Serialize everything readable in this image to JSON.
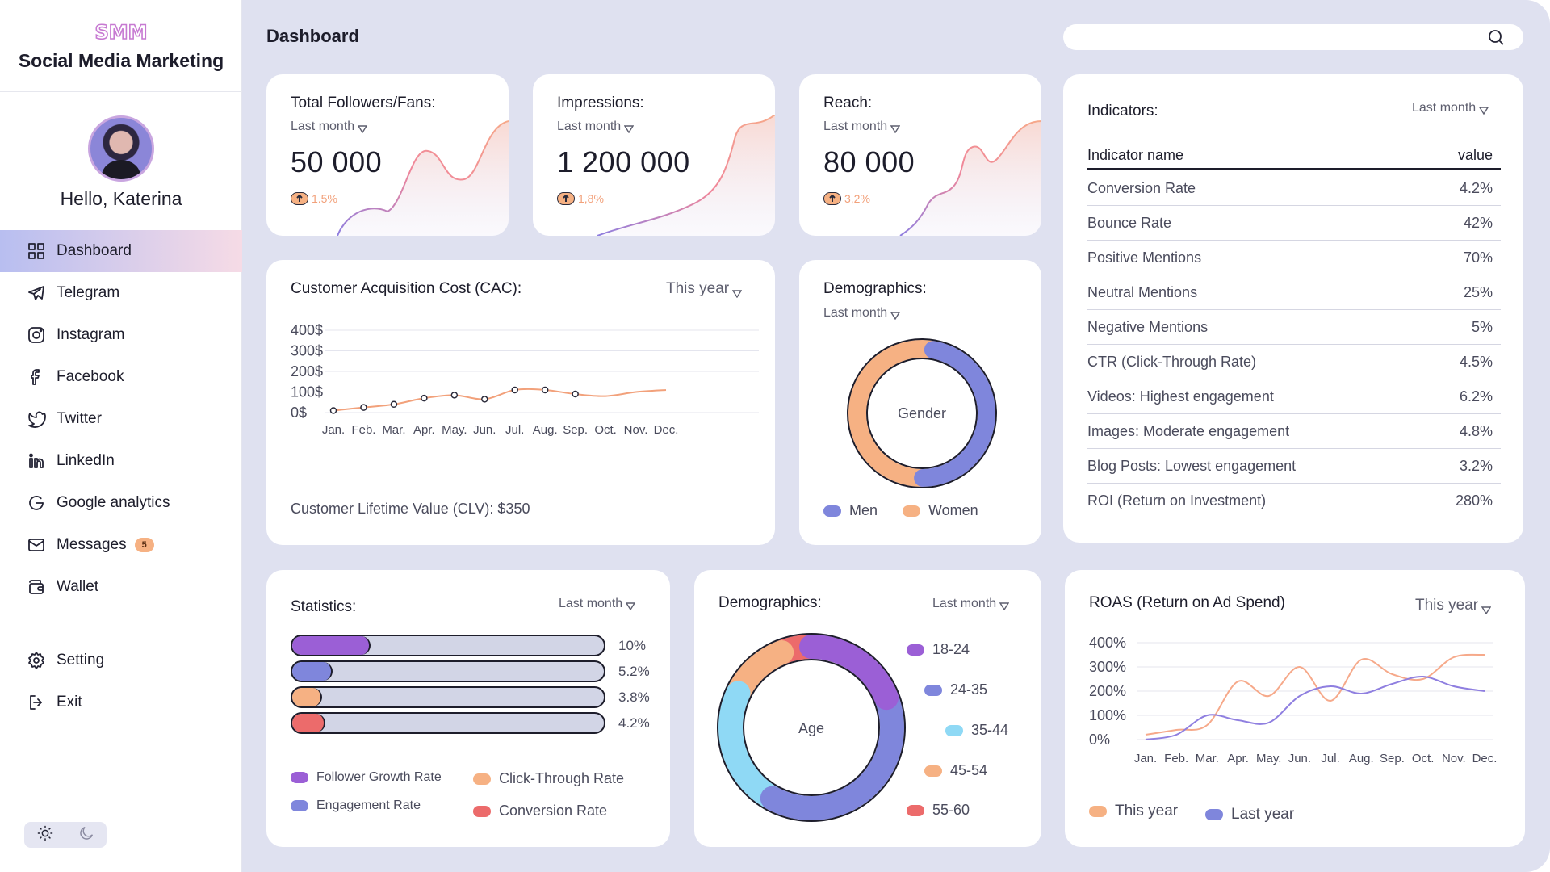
{
  "sidebar": {
    "logo": "SMM",
    "brand_name": "Social Media Marketing",
    "greeting": "Hello, Katerina",
    "items": [
      {
        "label": "Dashboard",
        "icon": "dashboard-icon"
      },
      {
        "label": "Telegram",
        "icon": "telegram-icon"
      },
      {
        "label": "Instagram",
        "icon": "instagram-icon"
      },
      {
        "label": "Facebook",
        "icon": "facebook-icon"
      },
      {
        "label": "Twitter",
        "icon": "twitter-icon"
      },
      {
        "label": "LinkedIn",
        "icon": "linkedin-icon"
      },
      {
        "label": "Google analytics",
        "icon": "google-icon"
      },
      {
        "label": "Messages",
        "icon": "mail-icon",
        "badge": "5"
      },
      {
        "label": "Wallet",
        "icon": "wallet-icon"
      }
    ],
    "bottom_items": [
      {
        "label": "Setting",
        "icon": "gear-icon"
      },
      {
        "label": "Exit",
        "icon": "exit-icon"
      }
    ]
  },
  "header": {
    "title": "Dashboard",
    "search_placeholder": ""
  },
  "kpis": [
    {
      "title": "Total Followers/Fans:",
      "period": "Last month",
      "value": "50 000",
      "delta": "1.5%"
    },
    {
      "title": "Impressions:",
      "period": "Last month",
      "value": "1 200 000",
      "delta": "1,8%"
    },
    {
      "title": "Reach:",
      "period": "Last month",
      "value": "80 000",
      "delta": "3,2%"
    }
  ],
  "cac": {
    "title": "Customer Acquisition Cost (CAC):",
    "period": "This year",
    "clv": "Customer Lifetime Value (CLV): $350"
  },
  "gender": {
    "title": "Demographics:",
    "period": "Last month",
    "center": "Gender",
    "legend": [
      "Men",
      "Women"
    ]
  },
  "indicators": {
    "title": "Indicators:",
    "period": "Last month",
    "col_name": "Indicator name",
    "col_value": "value",
    "rows": [
      {
        "name": "Conversion Rate",
        "value": "4.2%"
      },
      {
        "name": "Bounce Rate",
        "value": "42%"
      },
      {
        "name": "Positive Mentions",
        "value": "70%"
      },
      {
        "name": "Neutral Mentions",
        "value": "25%"
      },
      {
        "name": "Negative Mentions",
        "value": "5%"
      },
      {
        "name": "CTR (Click-Through Rate)",
        "value": "4.5%"
      },
      {
        "name": "Videos: Highest engagement",
        "value": "6.2%"
      },
      {
        "name": "Images: Moderate engagement",
        "value": "4.8%"
      },
      {
        "name": "Blog Posts: Lowest engagement",
        "value": "3.2%"
      },
      {
        "name": "ROI (Return on Investment)",
        "value": "280%"
      }
    ]
  },
  "statistics": {
    "title": "Statistics:",
    "period": "Last month",
    "bars": [
      {
        "label": "Follower Growth Rate",
        "value": 10,
        "text": "10%",
        "color": "#9b5fd6"
      },
      {
        "label": "Engagement Rate",
        "value": 5.2,
        "text": "5.2%",
        "color": "#7f86dc"
      },
      {
        "label": "Click-Through Rate",
        "value": 3.8,
        "text": "3.8%",
        "color": "#f6b183"
      },
      {
        "label": "Conversion Rate",
        "value": 4.2,
        "text": "4.2%",
        "color": "#ec6b6b"
      }
    ]
  },
  "age": {
    "title": "Demographics:",
    "period": "Last month",
    "center": "Age",
    "legend": [
      {
        "label": "18-24",
        "color": "#9b5fd6"
      },
      {
        "label": "24-35",
        "color": "#7f86dc"
      },
      {
        "label": "35-44",
        "color": "#8fd9f5"
      },
      {
        "label": "45-54",
        "color": "#f6b183"
      },
      {
        "label": "55-60",
        "color": "#ec6b6b"
      }
    ]
  },
  "roas": {
    "title": "ROAS (Return on Ad Spend)",
    "period": "This year",
    "legend": [
      "This year",
      "Last year"
    ]
  },
  "chart_data": [
    {
      "type": "line",
      "title": "Customer Acquisition Cost (CAC):",
      "categories": [
        "Jan.",
        "Feb.",
        "Mar.",
        "Apr.",
        "May.",
        "Jun.",
        "Jul.",
        "Aug.",
        "Sep.",
        "Oct.",
        "Nov.",
        "Dec."
      ],
      "y_ticks": [
        "400$",
        "300$",
        "200$",
        "100$",
        "0$"
      ],
      "ylim": [
        0,
        400
      ],
      "series": [
        {
          "values": [
            10,
            25,
            40,
            70,
            85,
            65,
            110,
            110,
            90,
            80,
            100,
            110
          ]
        }
      ],
      "color": "#f2a17b"
    },
    {
      "type": "pie",
      "title": "Demographics:",
      "center_label": "Gender",
      "labels": [
        "Men",
        "Women"
      ],
      "values": [
        47,
        53
      ],
      "colors": [
        "#7f86dc",
        "#f6b183"
      ]
    },
    {
      "type": "bar",
      "title": "Statistics:",
      "categories": [
        "Follower Growth Rate",
        "Engagement Rate",
        "Click-Through Rate",
        "Conversion Rate"
      ],
      "values": [
        10,
        5.2,
        3.8,
        4.2
      ],
      "colors": [
        "#9b5fd6",
        "#7f86dc",
        "#f6b183",
        "#ec6b6b"
      ]
    },
    {
      "type": "pie",
      "title": "Demographics:",
      "center_label": "Age",
      "labels": [
        "18-24",
        "24-35",
        "35-44",
        "45-54",
        "55-60"
      ],
      "values": [
        19,
        39,
        24,
        12,
        6
      ],
      "colors": [
        "#9b5fd6",
        "#7f86dc",
        "#8fd9f5",
        "#f6b183",
        "#ec6b6b"
      ]
    },
    {
      "type": "line",
      "title": "ROAS (Return on Ad Spend)",
      "categories": [
        "Jan.",
        "Feb.",
        "Mar.",
        "Apr.",
        "May.",
        "Jun.",
        "Jul.",
        "Aug.",
        "Sep.",
        "Oct.",
        "Nov.",
        "Dec."
      ],
      "y_ticks": [
        "400%",
        "300%",
        "200%",
        "100%",
        "0%"
      ],
      "ylim": [
        0,
        400
      ],
      "series": [
        {
          "name": "This year",
          "values": [
            20,
            40,
            60,
            240,
            180,
            300,
            160,
            330,
            270,
            250,
            340,
            350
          ],
          "color": "#f6a98a"
        },
        {
          "name": "Last year",
          "values": [
            0,
            20,
            100,
            80,
            70,
            180,
            220,
            190,
            230,
            260,
            220,
            200
          ],
          "color": "#8f7fe0"
        }
      ]
    }
  ]
}
